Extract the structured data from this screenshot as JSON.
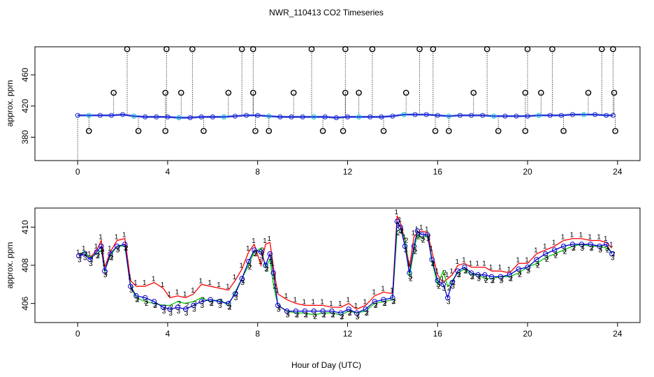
{
  "figure_title": "NWR_110413  CO2 Timeseries",
  "x_axis_title": "Hour of Day (UTC)",
  "chart_data": [
    {
      "type": "scatter",
      "title": "NWR_110413  CO2 Timeseries",
      "xlabel": "",
      "ylabel": "approx. ppm",
      "xlim": [
        -1.9,
        25.0
      ],
      "ylim": [
        350,
        496
      ],
      "xticks": [
        0,
        4,
        8,
        12,
        16,
        20,
        24
      ],
      "xtick_labels": [
        "0",
        "4",
        "8",
        "12",
        "16",
        "20",
        "24"
      ],
      "yticks": [
        380,
        420,
        460
      ],
      "ytick_labels": [
        "380",
        "420",
        "460"
      ],
      "baseline_series": {
        "name": "hourly measurements",
        "x": [
          0,
          0.5,
          1,
          1.5,
          2,
          2.5,
          3,
          3.5,
          4,
          4.5,
          5,
          5.5,
          6,
          6.5,
          7,
          7.5,
          8,
          8.5,
          9,
          9.5,
          10,
          10.5,
          11,
          11.5,
          12,
          12.5,
          13,
          13.5,
          14,
          14.5,
          15,
          15.5,
          16,
          16.5,
          17,
          17.5,
          18,
          18.5,
          19,
          19.5,
          20,
          20.5,
          21,
          21.5,
          22,
          22.5,
          23,
          23.5,
          23.8
        ],
        "values": [
          408,
          408,
          408,
          408,
          409,
          407,
          406,
          406,
          406,
          405,
          405,
          406,
          406,
          406,
          407,
          408,
          408,
          407,
          406,
          406,
          406,
          406,
          406,
          405,
          406,
          406,
          406,
          406,
          407,
          409,
          409,
          409,
          408,
          407,
          408,
          408,
          408,
          407,
          407,
          407,
          407,
          408,
          408,
          408,
          409,
          409,
          409,
          408,
          408
        ]
      },
      "flagged_points": {
        "name": "flagged outliers",
        "x": [
          0.5,
          1.6,
          2.2,
          2.7,
          3.9,
          3.9,
          3.95,
          4.6,
          5.1,
          5.6,
          6.7,
          7.3,
          7.8,
          7.8,
          7.9,
          8.5,
          9.6,
          10.4,
          10.9,
          11.8,
          11.9,
          11.9,
          12.5,
          13.1,
          13.6,
          14.6,
          15.2,
          15.8,
          15.9,
          16.5,
          17.6,
          18.2,
          18.7,
          19.9,
          19.9,
          20.0,
          20.6,
          21.1,
          21.6,
          22.7,
          23.3,
          23.8,
          23.85,
          23.9
        ],
        "values": [
          388,
          437,
          493,
          388,
          388,
          437,
          493,
          437,
          493,
          388,
          437,
          493,
          493,
          437,
          388,
          388,
          437,
          493,
          388,
          388,
          437,
          493,
          437,
          493,
          388,
          437,
          493,
          493,
          388,
          388,
          437,
          493,
          388,
          388,
          437,
          493,
          437,
          493,
          388,
          437,
          493,
          493,
          437,
          388
        ]
      }
    },
    {
      "type": "line",
      "title": "",
      "xlabel": "Hour of Day (UTC)",
      "ylabel": "approx. ppm",
      "xlim": [
        -1.9,
        25.0
      ],
      "ylim": [
        405.0,
        411.0
      ],
      "xticks": [
        0,
        4,
        8,
        12,
        16,
        20,
        24
      ],
      "xtick_labels": [
        "0",
        "4",
        "8",
        "12",
        "16",
        "20",
        "24"
      ],
      "yticks": [
        406,
        408,
        410
      ],
      "ytick_labels": [
        "406",
        "408",
        "410"
      ],
      "x": [
        0.05,
        0.3,
        0.55,
        0.85,
        1.05,
        1.2,
        1.45,
        1.75,
        2.1,
        2.35,
        2.6,
        3.0,
        3.4,
        3.8,
        4.1,
        4.45,
        4.8,
        5.15,
        5.5,
        5.9,
        6.3,
        6.7,
        7.0,
        7.3,
        7.6,
        7.85,
        8.15,
        8.35,
        8.55,
        8.7,
        8.9,
        9.3,
        9.7,
        10.1,
        10.5,
        10.9,
        11.3,
        11.7,
        12.05,
        12.4,
        12.8,
        13.2,
        13.6,
        14.0,
        14.2,
        14.35,
        14.55,
        14.75,
        14.95,
        15.1,
        15.3,
        15.55,
        15.75,
        16.0,
        16.25,
        16.45,
        16.65,
        16.9,
        17.2,
        17.5,
        17.8,
        18.1,
        18.4,
        18.8,
        19.2,
        19.6,
        20.0,
        20.4,
        20.8,
        21.2,
        21.6,
        22.0,
        22.4,
        22.8,
        23.2,
        23.5,
        23.75
      ],
      "series": [
        {
          "name": "1",
          "color": "#ff0000",
          "values": [
            408.5,
            408.7,
            408.4,
            408.8,
            409.3,
            407.9,
            408.7,
            409.3,
            409.4,
            407.2,
            406.9,
            406.9,
            407.1,
            406.8,
            406.3,
            406.4,
            406.3,
            406.5,
            407.0,
            406.9,
            406.8,
            406.7,
            407.2,
            407.8,
            408.7,
            409.1,
            408.0,
            409.1,
            409.2,
            407.9,
            406.5,
            406.2,
            406.0,
            405.9,
            405.9,
            405.9,
            405.8,
            405.8,
            406.0,
            405.7,
            405.9,
            406.4,
            406.6,
            406.5,
            410.6,
            410.2,
            409.3,
            407.9,
            409.5,
            409.7,
            409.8,
            409.7,
            408.7,
            407.5,
            407.1,
            407.3,
            407.5,
            408.0,
            408.1,
            407.9,
            407.9,
            407.9,
            407.7,
            407.7,
            407.6,
            408.1,
            408.1,
            408.6,
            408.8,
            409.0,
            409.3,
            409.4,
            409.4,
            409.3,
            409.3,
            409.2,
            408.9
          ]
        },
        {
          "name": "2",
          "color": "#00cc00",
          "values": [
            408.6,
            408.7,
            408.4,
            408.6,
            408.8,
            407.7,
            408.5,
            409.0,
            409.0,
            406.9,
            406.3,
            406.1,
            406.0,
            405.9,
            405.9,
            406.1,
            406.0,
            406.1,
            406.3,
            406.1,
            406.2,
            405.9,
            406.6,
            407.3,
            408.0,
            408.7,
            408.9,
            407.9,
            408.3,
            407.0,
            405.9,
            405.6,
            405.5,
            405.5,
            405.4,
            405.5,
            405.5,
            405.4,
            405.6,
            405.5,
            405.6,
            406.0,
            406.1,
            406.2,
            409.8,
            409.9,
            409.4,
            407.4,
            408.8,
            409.6,
            409.4,
            409.6,
            408.2,
            407.0,
            407.7,
            406.9,
            407.2,
            407.6,
            407.8,
            407.5,
            407.5,
            407.3,
            407.3,
            407.4,
            407.4,
            407.6,
            407.9,
            408.1,
            408.4,
            408.6,
            408.8,
            409.0,
            409.1,
            409.0,
            409.0,
            408.9,
            408.7
          ]
        },
        {
          "name": "3",
          "color": "#0000cc",
          "values": [
            408.5,
            408.6,
            408.3,
            408.7,
            409.0,
            407.7,
            408.6,
            409.0,
            409.1,
            406.9,
            406.4,
            406.3,
            406.1,
            405.8,
            405.7,
            405.8,
            405.7,
            405.9,
            406.1,
            406.2,
            406.1,
            406.0,
            406.5,
            407.3,
            408.2,
            408.8,
            408.7,
            408.0,
            408.6,
            407.6,
            405.9,
            405.6,
            405.6,
            405.6,
            405.6,
            405.6,
            405.6,
            405.5,
            405.7,
            405.5,
            405.7,
            406.1,
            406.2,
            406.3,
            410.3,
            410.0,
            409.0,
            407.6,
            409.0,
            409.8,
            409.6,
            409.6,
            408.3,
            407.2,
            407.0,
            406.3,
            407.1,
            407.7,
            407.9,
            407.6,
            407.5,
            407.5,
            407.4,
            407.4,
            407.5,
            407.8,
            407.9,
            408.3,
            408.6,
            408.8,
            409.0,
            409.1,
            409.1,
            409.1,
            409.0,
            409.1,
            408.6
          ]
        }
      ]
    }
  ]
}
